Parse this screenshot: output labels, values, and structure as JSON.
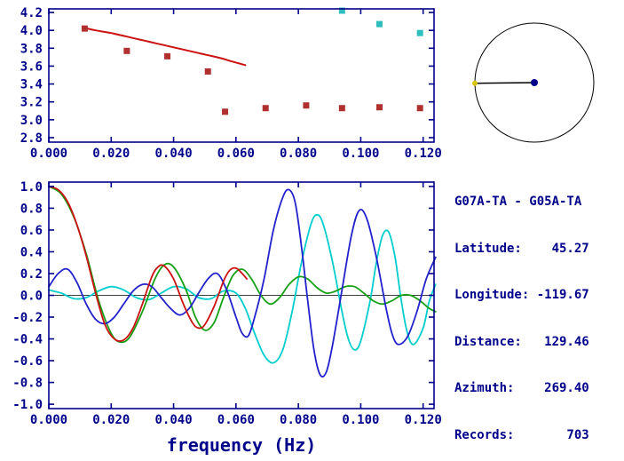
{
  "colors": {
    "axis": "#00008B",
    "text": "#00008B",
    "zero_line": "#000000",
    "circle_stroke": "#000000",
    "dial_line": "#000000",
    "dial_center_dot": "#00008B",
    "dial_edge_dot": "#d8c400",
    "red_line": "#cc1111",
    "red_marker": "#b03030",
    "cyan_marker": "#2fbdbd",
    "green_line": "#15a015",
    "blue_line": "#2222cc",
    "cyan_line": "#00cdcd"
  },
  "info": {
    "title": "G07A-TA - G05A-TA",
    "lines": [
      "Latitude:    45.27",
      "Longitude: -119.67",
      "Distance:   129.46",
      "Azimuth:    269.40",
      "Records:       703"
    ],
    "latitude": 45.27,
    "longitude": -119.67,
    "distance": 129.46,
    "azimuth": 269.4,
    "records": 703
  },
  "dial": {
    "azimuth_deg": 269.4
  },
  "chart_data": [
    {
      "id": "dispersion",
      "type": "scatter",
      "title": "",
      "xlabel": "",
      "ylabel": "",
      "xlim": [
        0,
        0.1235
      ],
      "ylim": [
        2.75,
        4.24
      ],
      "grid": false,
      "xtick_vals": [
        0.0,
        0.02,
        0.04,
        0.06,
        0.08,
        0.1,
        0.12
      ],
      "xticks": [
        "0.000",
        "0.020",
        "0.040",
        "0.060",
        "0.080",
        "0.100",
        "0.120"
      ],
      "ytick_vals": [
        4.2,
        4.0,
        3.8,
        3.6,
        3.4,
        3.2,
        3.0,
        2.8
      ],
      "yticks": [
        "4.2",
        "4.0",
        "3.8",
        "3.6",
        "3.4",
        "3.2",
        "3.0",
        "2.8"
      ],
      "zero_line": false,
      "series": [
        {
          "name": "dispersion-curve-red",
          "kind": "line",
          "color": "#cc1111",
          "width": 2,
          "points": [
            [
              0.011,
              4.03
            ],
            [
              0.015,
              4.0
            ],
            [
              0.02,
              3.97
            ],
            [
              0.025,
              3.93
            ],
            [
              0.03,
              3.89
            ],
            [
              0.035,
              3.85
            ],
            [
              0.04,
              3.81
            ],
            [
              0.045,
              3.77
            ],
            [
              0.05,
              3.73
            ],
            [
              0.055,
              3.69
            ],
            [
              0.058,
              3.66
            ],
            [
              0.061,
              3.63
            ],
            [
              0.063,
              3.61
            ]
          ]
        },
        {
          "name": "measurement-squares-red",
          "kind": "scatter",
          "marker": "square",
          "color": "#b03030",
          "size": 7,
          "points": [
            [
              0.0115,
              4.02
            ],
            [
              0.025,
              3.77
            ],
            [
              0.038,
              3.71
            ],
            [
              0.051,
              3.54
            ],
            [
              0.0565,
              3.09
            ],
            [
              0.0695,
              3.13
            ],
            [
              0.0825,
              3.16
            ],
            [
              0.094,
              3.13
            ],
            [
              0.106,
              3.14
            ],
            [
              0.119,
              3.13
            ]
          ]
        },
        {
          "name": "measurement-squares-cyan",
          "kind": "scatter",
          "marker": "square",
          "color": "#2fbdbd",
          "size": 7,
          "points": [
            [
              0.094,
              4.22
            ],
            [
              0.106,
              4.07
            ],
            [
              0.119,
              3.97
            ]
          ]
        }
      ]
    },
    {
      "id": "waveforms",
      "type": "line",
      "title": "",
      "xlabel": "frequency (Hz)",
      "ylabel": "",
      "xlim": [
        0,
        0.1235
      ],
      "ylim": [
        -1.04,
        1.04
      ],
      "grid": false,
      "xtick_vals": [
        0.0,
        0.02,
        0.04,
        0.06,
        0.08,
        0.1,
        0.12
      ],
      "xticks": [
        "0.000",
        "0.020",
        "0.040",
        "0.060",
        "0.080",
        "0.100",
        "0.120"
      ],
      "ytick_vals": [
        1.0,
        0.8,
        0.6,
        0.4,
        0.2,
        0.0,
        -0.2,
        -0.4,
        -0.6,
        -0.8,
        -1.0
      ],
      "yticks": [
        "1.0",
        "0.8",
        "0.6",
        "0.4",
        "0.2",
        "0.0",
        "-0.2",
        "-0.4",
        "-0.6",
        "-0.8",
        "-1.0"
      ],
      "zero_line": true,
      "series": [
        {
          "name": "waveform-cyan",
          "kind": "line",
          "color": "#00cdcd",
          "width": 1.8,
          "points": [
            [
              0.0,
              0.05
            ],
            [
              0.004,
              0.02
            ],
            [
              0.008,
              -0.03
            ],
            [
              0.012,
              -0.02
            ],
            [
              0.016,
              0.04
            ],
            [
              0.02,
              0.08
            ],
            [
              0.024,
              0.05
            ],
            [
              0.028,
              -0.02
            ],
            [
              0.032,
              -0.04
            ],
            [
              0.036,
              0.02
            ],
            [
              0.04,
              0.08
            ],
            [
              0.044,
              0.06
            ],
            [
              0.048,
              -0.02
            ],
            [
              0.052,
              -0.03
            ],
            [
              0.056,
              0.04
            ],
            [
              0.06,
              0.02
            ],
            [
              0.063,
              -0.12
            ],
            [
              0.066,
              -0.35
            ],
            [
              0.069,
              -0.55
            ],
            [
              0.072,
              -0.62
            ],
            [
              0.075,
              -0.5
            ],
            [
              0.078,
              -0.15
            ],
            [
              0.081,
              0.3
            ],
            [
              0.084,
              0.65
            ],
            [
              0.086,
              0.74
            ],
            [
              0.088,
              0.65
            ],
            [
              0.091,
              0.3
            ],
            [
              0.094,
              -0.15
            ],
            [
              0.096,
              -0.4
            ],
            [
              0.098,
              -0.5
            ],
            [
              0.1,
              -0.42
            ],
            [
              0.103,
              -0.05
            ],
            [
              0.105,
              0.3
            ],
            [
              0.107,
              0.55
            ],
            [
              0.109,
              0.58
            ],
            [
              0.111,
              0.35
            ],
            [
              0.113,
              -0.05
            ],
            [
              0.115,
              -0.35
            ],
            [
              0.117,
              -0.45
            ],
            [
              0.12,
              -0.3
            ],
            [
              0.122,
              -0.05
            ],
            [
              0.124,
              0.1
            ]
          ]
        },
        {
          "name": "waveform-green",
          "kind": "line",
          "color": "#15a015",
          "width": 1.8,
          "points": [
            [
              0.0,
              1.0
            ],
            [
              0.004,
              0.93
            ],
            [
              0.008,
              0.72
            ],
            [
              0.012,
              0.38
            ],
            [
              0.016,
              -0.05
            ],
            [
              0.02,
              -0.35
            ],
            [
              0.023,
              -0.43
            ],
            [
              0.026,
              -0.38
            ],
            [
              0.03,
              -0.15
            ],
            [
              0.034,
              0.15
            ],
            [
              0.037,
              0.28
            ],
            [
              0.04,
              0.26
            ],
            [
              0.044,
              0.05
            ],
            [
              0.047,
              -0.2
            ],
            [
              0.05,
              -0.32
            ],
            [
              0.053,
              -0.25
            ],
            [
              0.056,
              -0.02
            ],
            [
              0.059,
              0.18
            ],
            [
              0.062,
              0.24
            ],
            [
              0.065,
              0.15
            ],
            [
              0.068,
              0.0
            ],
            [
              0.071,
              -0.08
            ],
            [
              0.074,
              -0.02
            ],
            [
              0.077,
              0.1
            ],
            [
              0.08,
              0.17
            ],
            [
              0.083,
              0.15
            ],
            [
              0.086,
              0.07
            ],
            [
              0.089,
              0.02
            ],
            [
              0.092,
              0.04
            ],
            [
              0.095,
              0.08
            ],
            [
              0.098,
              0.08
            ],
            [
              0.101,
              0.02
            ],
            [
              0.104,
              -0.05
            ],
            [
              0.107,
              -0.08
            ],
            [
              0.11,
              -0.05
            ],
            [
              0.113,
              0.0
            ],
            [
              0.116,
              0.0
            ],
            [
              0.119,
              -0.05
            ],
            [
              0.122,
              -0.12
            ],
            [
              0.124,
              -0.15
            ]
          ]
        },
        {
          "name": "waveform-blue",
          "kind": "line",
          "color": "#2222cc",
          "width": 1.8,
          "points": [
            [
              0.0,
              0.08
            ],
            [
              0.003,
              0.2
            ],
            [
              0.006,
              0.24
            ],
            [
              0.009,
              0.12
            ],
            [
              0.012,
              -0.08
            ],
            [
              0.015,
              -0.22
            ],
            [
              0.018,
              -0.26
            ],
            [
              0.021,
              -0.2
            ],
            [
              0.024,
              -0.08
            ],
            [
              0.027,
              0.04
            ],
            [
              0.03,
              0.1
            ],
            [
              0.033,
              0.08
            ],
            [
              0.036,
              -0.02
            ],
            [
              0.039,
              -0.12
            ],
            [
              0.042,
              -0.18
            ],
            [
              0.045,
              -0.12
            ],
            [
              0.048,
              0.02
            ],
            [
              0.051,
              0.15
            ],
            [
              0.054,
              0.2
            ],
            [
              0.057,
              0.05
            ],
            [
              0.06,
              -0.2
            ],
            [
              0.062,
              -0.35
            ],
            [
              0.064,
              -0.37
            ],
            [
              0.066,
              -0.2
            ],
            [
              0.069,
              0.15
            ],
            [
              0.072,
              0.6
            ],
            [
              0.075,
              0.9
            ],
            [
              0.077,
              0.97
            ],
            [
              0.079,
              0.85
            ],
            [
              0.081,
              0.45
            ],
            [
              0.083,
              -0.05
            ],
            [
              0.085,
              -0.5
            ],
            [
              0.087,
              -0.73
            ],
            [
              0.089,
              -0.7
            ],
            [
              0.091,
              -0.45
            ],
            [
              0.094,
              0.05
            ],
            [
              0.097,
              0.55
            ],
            [
              0.0995,
              0.78
            ],
            [
              0.102,
              0.7
            ],
            [
              0.105,
              0.35
            ],
            [
              0.108,
              -0.1
            ],
            [
              0.11,
              -0.35
            ],
            [
              0.112,
              -0.45
            ],
            [
              0.115,
              -0.38
            ],
            [
              0.118,
              -0.15
            ],
            [
              0.121,
              0.15
            ],
            [
              0.124,
              0.35
            ]
          ]
        },
        {
          "name": "waveform-red",
          "kind": "line",
          "color": "#cc1111",
          "width": 1.8,
          "points": [
            [
              0.0,
              1.0
            ],
            [
              0.003,
              0.97
            ],
            [
              0.006,
              0.86
            ],
            [
              0.009,
              0.65
            ],
            [
              0.012,
              0.36
            ],
            [
              0.015,
              0.02
            ],
            [
              0.018,
              -0.27
            ],
            [
              0.021,
              -0.4
            ],
            [
              0.024,
              -0.41
            ],
            [
              0.027,
              -0.3
            ],
            [
              0.03,
              -0.08
            ],
            [
              0.033,
              0.17
            ],
            [
              0.035,
              0.26
            ],
            [
              0.037,
              0.27
            ],
            [
              0.04,
              0.15
            ],
            [
              0.043,
              -0.07
            ],
            [
              0.046,
              -0.25
            ],
            [
              0.048,
              -0.3
            ],
            [
              0.05,
              -0.27
            ],
            [
              0.053,
              -0.1
            ],
            [
              0.056,
              0.13
            ],
            [
              0.058,
              0.23
            ],
            [
              0.06,
              0.25
            ],
            [
              0.062,
              0.2
            ],
            [
              0.0635,
              0.15
            ]
          ]
        }
      ]
    }
  ]
}
